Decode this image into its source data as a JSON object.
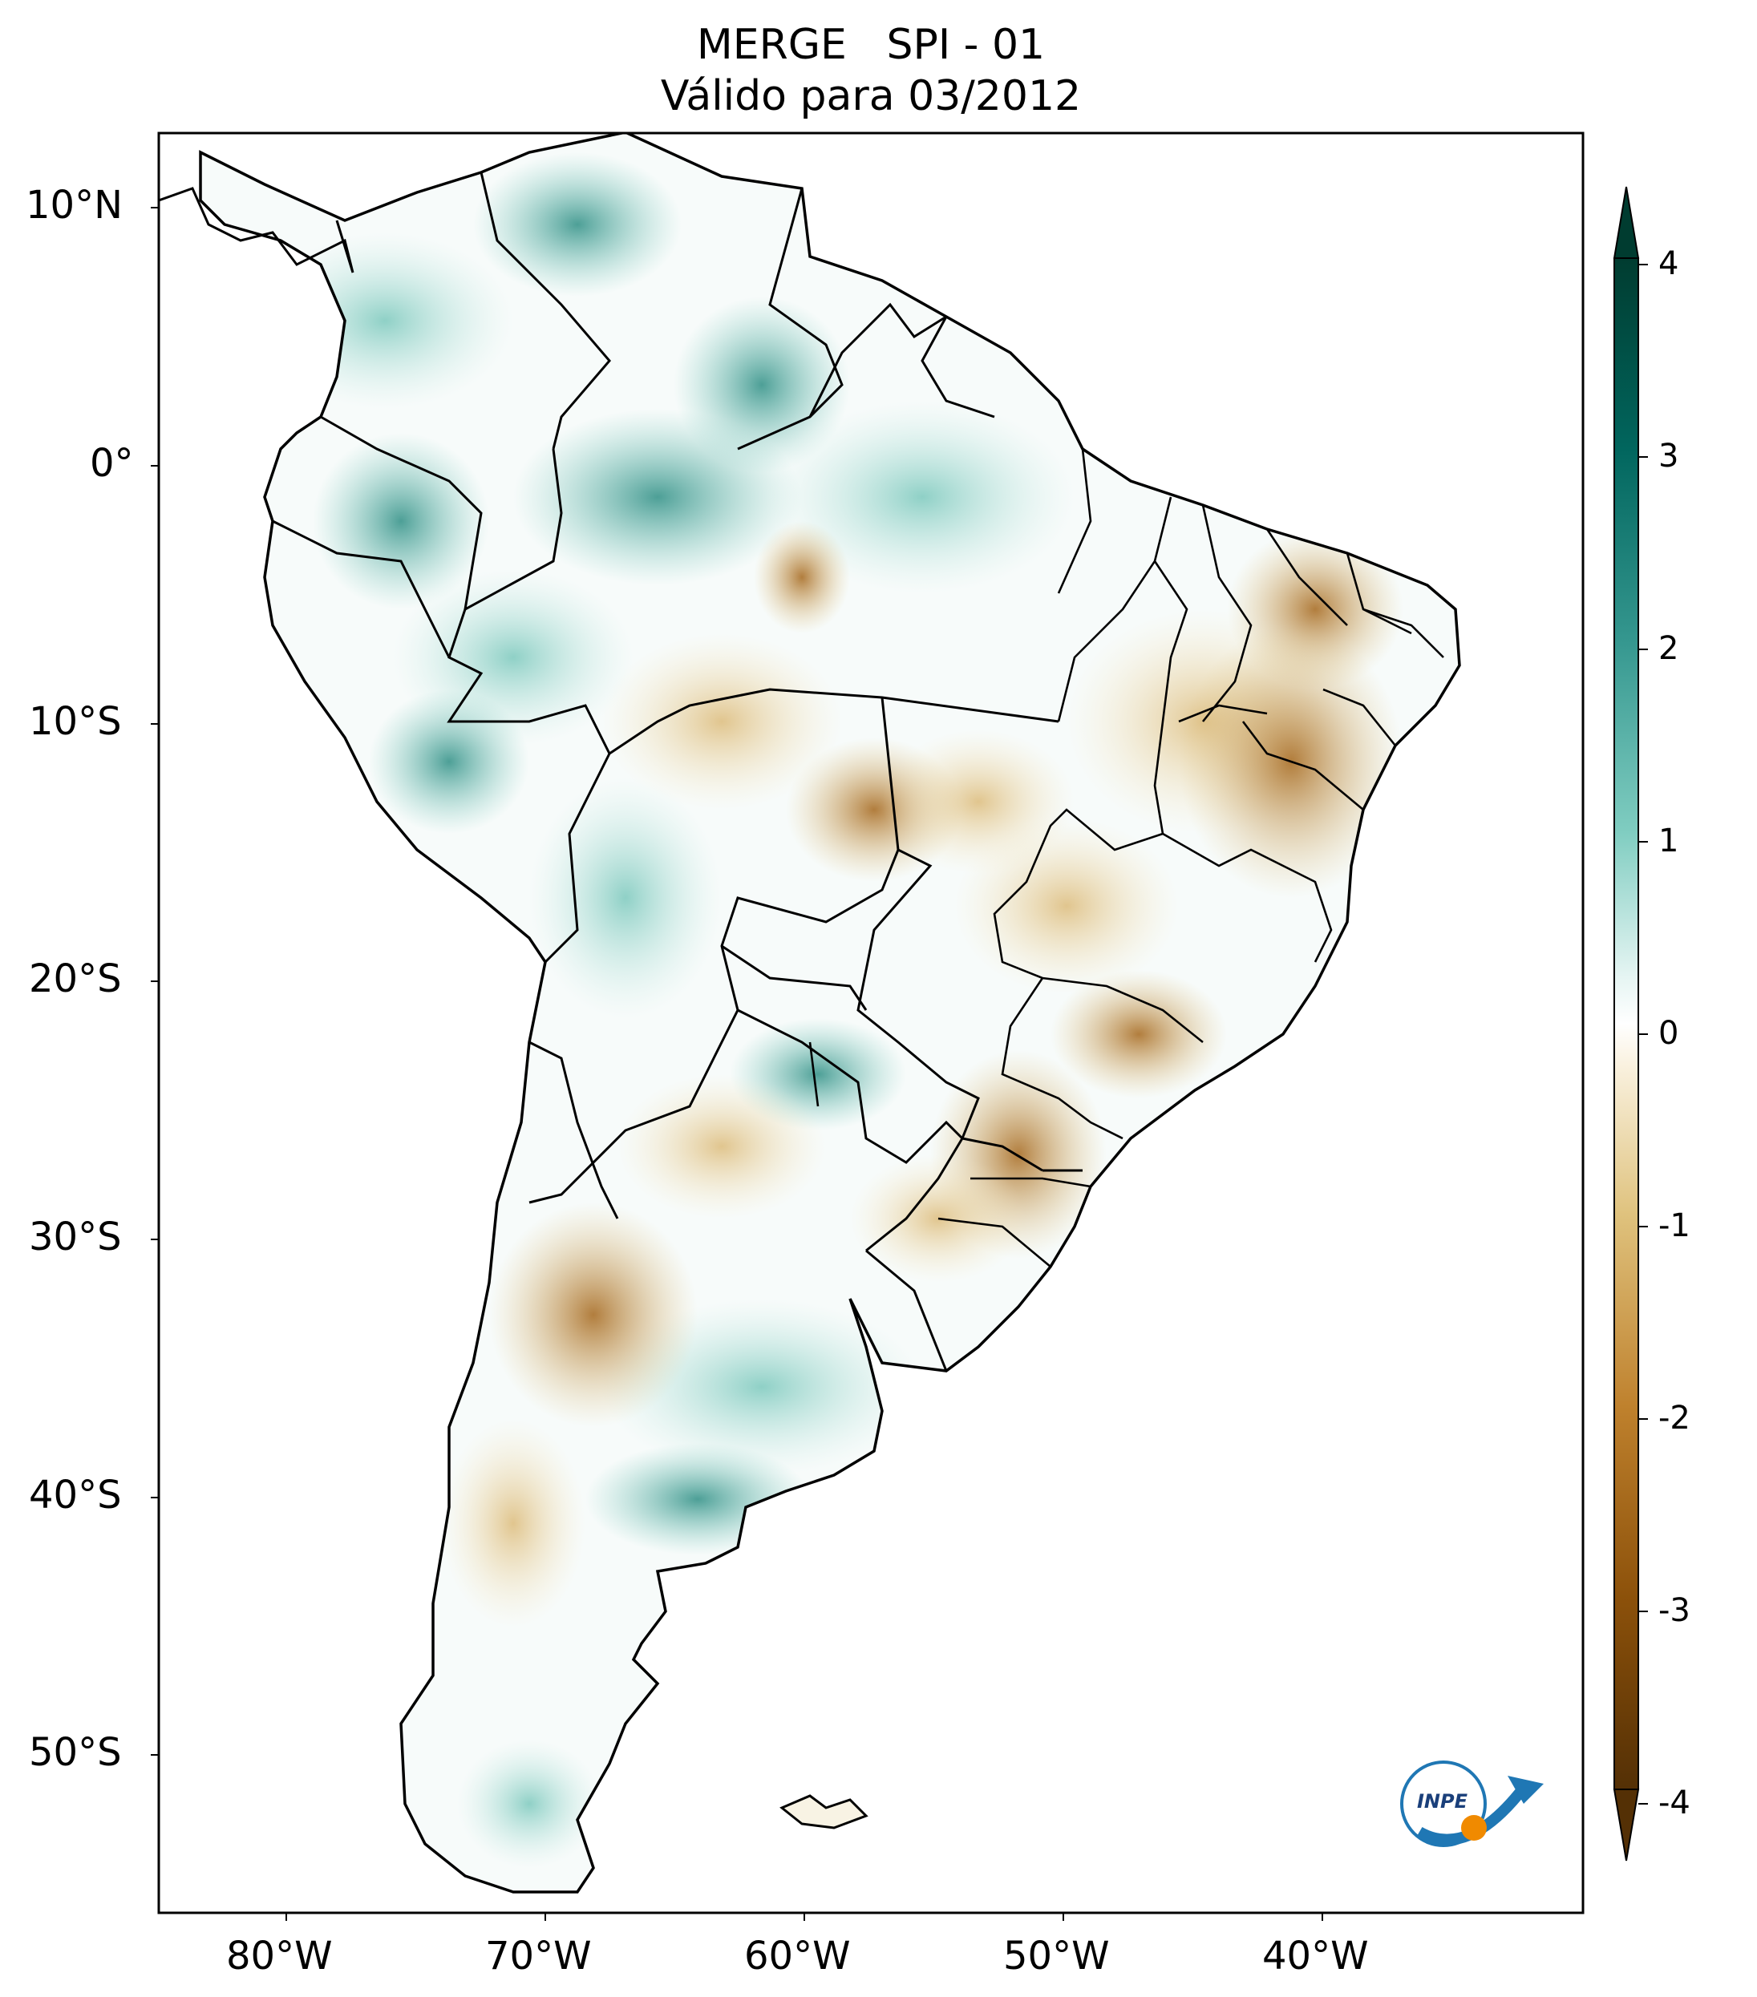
{
  "title": {
    "line1": "MERGE   SPI - 01",
    "line2": "Válido para 03/2012"
  },
  "map": {
    "region": "South America",
    "lon_range": [
      -85,
      -30
    ],
    "lat_range": [
      -56,
      13
    ],
    "lat_ticks": [
      {
        "value": 10,
        "label": "10°N"
      },
      {
        "value": 0,
        "label": "0°"
      },
      {
        "value": -10,
        "label": "10°S"
      },
      {
        "value": -20,
        "label": "20°S"
      },
      {
        "value": -30,
        "label": "30°S"
      },
      {
        "value": -40,
        "label": "40°S"
      },
      {
        "value": -50,
        "label": "50°S"
      }
    ],
    "lon_ticks": [
      {
        "value": -80,
        "label": "80°W"
      },
      {
        "value": -70,
        "label": "70°W"
      },
      {
        "value": -60,
        "label": "60°W"
      },
      {
        "value": -50,
        "label": "50°W"
      },
      {
        "value": -40,
        "label": "40°W"
      }
    ]
  },
  "colorbar": {
    "range": [
      -4,
      4
    ],
    "extend": "both",
    "ticks": [
      {
        "value": 4,
        "label": "4"
      },
      {
        "value": 3,
        "label": "3"
      },
      {
        "value": 2,
        "label": "2"
      },
      {
        "value": 1,
        "label": "1"
      },
      {
        "value": 0,
        "label": "0"
      },
      {
        "value": -1,
        "label": "-1"
      },
      {
        "value": -2,
        "label": "-2"
      },
      {
        "value": -3,
        "label": "-3"
      },
      {
        "value": -4,
        "label": "-4"
      }
    ],
    "colors": {
      "dry_extreme": "#543005",
      "dry": "#bf812d",
      "neutral": "#ffffff",
      "wet": "#35978f",
      "wet_extreme": "#003c30"
    }
  },
  "logo": {
    "text": "INPE"
  }
}
